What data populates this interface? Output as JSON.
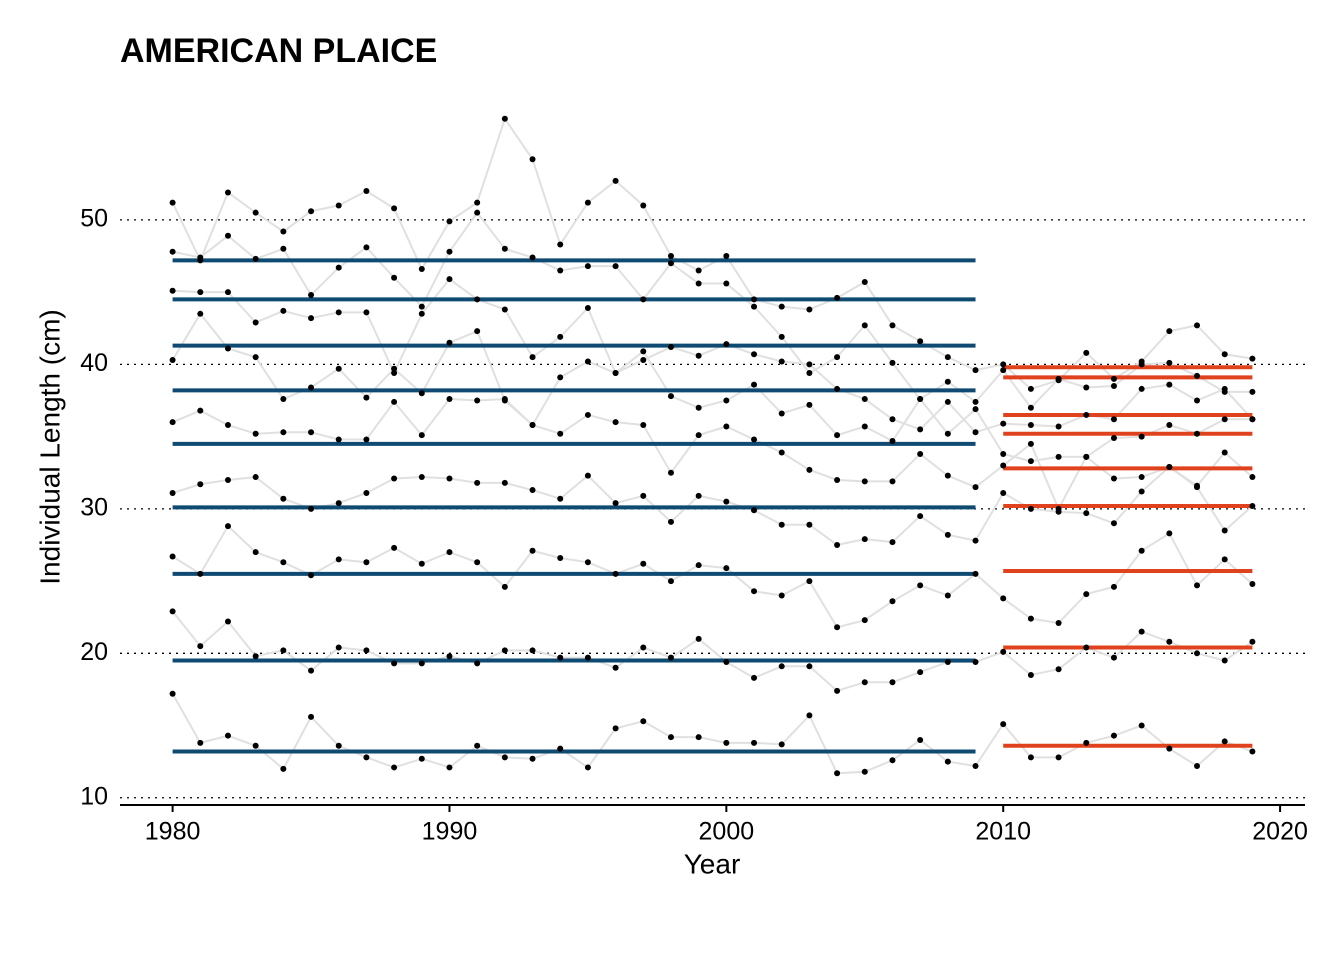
{
  "chart_data": {
    "type": "line",
    "title": "AMERICAN PLAICE",
    "x_label": "Year",
    "y_label": "Individual Length (cm)",
    "x": [
      1980,
      1981,
      1982,
      1983,
      1984,
      1985,
      1986,
      1987,
      1988,
      1989,
      1990,
      1991,
      1992,
      1993,
      1994,
      1995,
      1996,
      1997,
      1998,
      1999,
      2000,
      2001,
      2002,
      2003,
      2004,
      2005,
      2006,
      2007,
      2008,
      2009,
      2010,
      2011,
      2012,
      2013,
      2014,
      2015,
      2016,
      2017,
      2018,
      2019
    ],
    "line_color": "#e0e0e0",
    "point_color": "#000000",
    "series": [
      {
        "values": [
          51.2,
          47.2,
          51.9,
          50.5,
          49.2,
          50.6,
          51.0,
          52.0,
          50.8,
          46.6,
          49.9,
          51.2,
          57.0,
          54.2,
          48.3,
          51.2,
          52.7,
          51.0,
          47.5,
          46.5,
          47.5,
          44.5,
          44.0,
          43.8,
          44.6,
          45.7,
          42.7,
          41.6,
          40.5,
          39.6,
          40.0,
          38.3,
          38.9,
          40.8,
          39.0,
          40.2,
          42.3,
          42.7,
          40.7,
          40.4
        ]
      },
      {
        "values": [
          47.8,
          47.4,
          48.9,
          47.3,
          48.0,
          44.8,
          46.7,
          48.1,
          46.0,
          44.0,
          47.8,
          50.5,
          48.0,
          47.4,
          46.5,
          46.8,
          46.8,
          44.5,
          47.0,
          45.6,
          45.6,
          44.0,
          41.9,
          39.4,
          40.5,
          42.7,
          40.1,
          37.6,
          38.8,
          37.4,
          39.6,
          37.0,
          39.0,
          38.4,
          38.5,
          40.0,
          40.1,
          39.2,
          38.1,
          38.1
        ]
      },
      {
        "values": [
          45.1,
          45.0,
          45.0,
          42.9,
          43.7,
          43.2,
          43.6,
          43.6,
          39.4,
          43.5,
          45.9,
          44.5,
          43.8,
          40.5,
          41.9,
          43.9,
          39.4,
          40.3,
          41.2,
          40.6,
          41.4,
          40.7,
          40.2,
          40.0,
          38.3,
          37.6,
          36.2,
          35.5,
          37.4,
          35.3,
          35.9,
          35.8,
          35.7,
          36.5,
          36.2,
          38.3,
          38.6,
          37.5,
          38.3,
          36.2
        ]
      },
      {
        "values": [
          40.3,
          43.5,
          41.1,
          40.5,
          37.6,
          38.4,
          39.7,
          37.7,
          39.7,
          38.0,
          41.5,
          42.3,
          37.5,
          35.8,
          39.1,
          40.2,
          39.4,
          40.9,
          37.8,
          37.0,
          37.5,
          38.6,
          36.6,
          37.2,
          35.1,
          35.7,
          34.7,
          37.6,
          35.2,
          36.9,
          33.8,
          33.3,
          33.6,
          33.6,
          34.9,
          35.0,
          35.8,
          35.2,
          36.2,
          36.2
        ]
      },
      {
        "values": [
          36.0,
          36.8,
          35.8,
          35.2,
          35.3,
          35.3,
          34.8,
          34.8,
          37.4,
          35.1,
          37.6,
          37.5,
          37.6,
          35.8,
          35.2,
          36.5,
          36.0,
          35.8,
          32.5,
          35.1,
          35.7,
          34.8,
          33.9,
          32.7,
          32.0,
          31.9,
          31.9,
          33.8,
          32.3,
          31.5,
          33.0,
          34.5,
          30.0,
          33.6,
          32.1,
          32.2,
          32.9,
          31.6,
          33.9,
          32.2
        ]
      },
      {
        "values": [
          31.1,
          31.7,
          32.0,
          32.2,
          30.7,
          30.0,
          30.4,
          31.1,
          32.1,
          32.2,
          32.1,
          31.8,
          31.8,
          31.3,
          30.7,
          32.3,
          30.4,
          30.9,
          29.1,
          30.9,
          30.5,
          29.9,
          28.9,
          28.9,
          27.5,
          27.9,
          27.7,
          29.5,
          28.2,
          27.8,
          31.1,
          30.0,
          29.8,
          29.7,
          29.0,
          31.2,
          32.9,
          31.5,
          28.5,
          30.2
        ]
      },
      {
        "values": [
          26.7,
          25.5,
          28.8,
          27.0,
          26.3,
          25.4,
          26.5,
          26.3,
          27.3,
          26.2,
          27.0,
          26.3,
          24.6,
          27.1,
          26.6,
          26.3,
          25.5,
          26.2,
          25.0,
          26.1,
          25.9,
          24.3,
          24.0,
          25.0,
          21.8,
          22.3,
          23.6,
          24.7,
          24.0,
          25.5,
          23.8,
          22.4,
          22.1,
          24.1,
          24.6,
          27.1,
          28.3,
          24.7,
          26.5,
          24.8
        ]
      },
      {
        "values": [
          22.9,
          20.5,
          22.2,
          19.8,
          20.2,
          18.8,
          20.4,
          20.2,
          19.3,
          19.3,
          19.8,
          19.3,
          20.2,
          20.2,
          19.7,
          19.7,
          19.0,
          20.4,
          19.7,
          21.0,
          19.4,
          18.3,
          19.1,
          19.1,
          17.4,
          18.0,
          18.0,
          18.7,
          19.4,
          19.4,
          20.1,
          18.5,
          18.9,
          20.4,
          19.7,
          21.5,
          20.8,
          20.0,
          19.5,
          20.8
        ]
      },
      {
        "values": [
          17.2,
          13.8,
          14.3,
          13.6,
          12.0,
          15.6,
          13.6,
          12.8,
          12.1,
          12.7,
          12.1,
          13.6,
          12.8,
          12.7,
          13.4,
          12.1,
          14.8,
          15.3,
          14.2,
          14.2,
          13.8,
          13.8,
          13.7,
          15.7,
          11.7,
          11.8,
          12.6,
          14.0,
          12.5,
          12.2,
          15.1,
          12.8,
          12.8,
          13.8,
          14.3,
          15.0,
          13.4,
          12.2,
          13.9,
          13.2
        ]
      }
    ],
    "reference_lines": [
      {
        "color": "#0e4a72",
        "x_range": [
          1980,
          2009
        ],
        "values": [
          47.2,
          44.5,
          41.3,
          38.2,
          34.5,
          30.1,
          25.5,
          19.5,
          13.2
        ]
      },
      {
        "color": "#e0421e",
        "x_range": [
          2010,
          2019
        ],
        "values": [
          39.8,
          39.1,
          36.5,
          35.2,
          32.8,
          30.2,
          25.7,
          20.4,
          13.6
        ]
      }
    ],
    "xlim": [
      1978.1,
      2020.9
    ],
    "ylim": [
      9.5,
      58.3
    ],
    "xticks": [
      1980,
      1990,
      2000,
      2010,
      2020
    ],
    "yticks": [
      10,
      20,
      30,
      40,
      50
    ],
    "grid": true
  }
}
